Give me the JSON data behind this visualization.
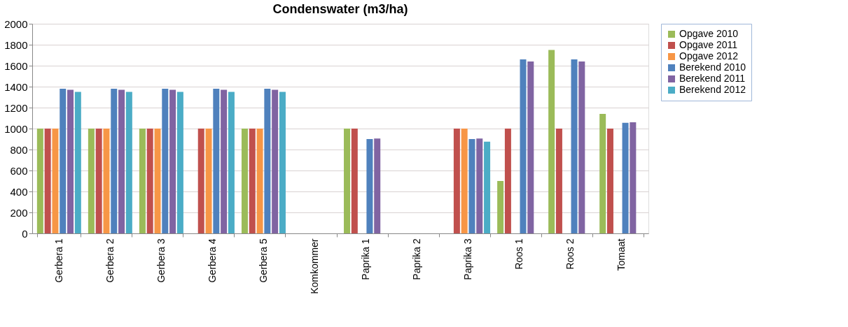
{
  "chart_data": {
    "type": "bar",
    "title": "Condenswater (m3/ha)",
    "categories": [
      "Gerbera 1",
      "Gerbera 2",
      "Gerbera 3",
      "Gerbera 4",
      "Gerbera 5",
      "Komkommer",
      "Paprika 1",
      "Paprika 2",
      "Paprika 3",
      "Roos 1",
      "Roos 2",
      "Tomaat"
    ],
    "series": [
      {
        "name": "Opgave 2010",
        "color": "#9bbb59",
        "values": [
          1000,
          1000,
          1000,
          null,
          1000,
          null,
          1000,
          null,
          null,
          500,
          1750,
          1140
        ]
      },
      {
        "name": "Opgave 2011",
        "color": "#c0504d",
        "values": [
          1000,
          1000,
          1000,
          1000,
          1000,
          null,
          1000,
          null,
          1000,
          1000,
          1000,
          1000
        ]
      },
      {
        "name": "Opgave 2012",
        "color": "#f79646",
        "values": [
          1000,
          1000,
          1000,
          1000,
          1000,
          null,
          null,
          null,
          1000,
          null,
          null,
          null
        ]
      },
      {
        "name": "Berekend 2010",
        "color": "#4f81bd",
        "values": [
          1380,
          1380,
          1380,
          1380,
          1380,
          null,
          900,
          null,
          900,
          1660,
          1660,
          1055
        ]
      },
      {
        "name": "Berekend 2011",
        "color": "#8064a2",
        "values": [
          1370,
          1370,
          1370,
          1370,
          1370,
          null,
          905,
          null,
          905,
          1640,
          1640,
          1060
        ]
      },
      {
        "name": "Berekend 2012",
        "color": "#4bacc6",
        "values": [
          1350,
          1350,
          1350,
          1350,
          1350,
          null,
          null,
          null,
          875,
          null,
          null,
          null
        ]
      }
    ],
    "ylim": [
      0,
      2000
    ],
    "yticks": [
      0,
      200,
      400,
      600,
      800,
      1000,
      1200,
      1400,
      1600,
      1800,
      2000
    ],
    "grid": "y",
    "legend": "top right"
  }
}
